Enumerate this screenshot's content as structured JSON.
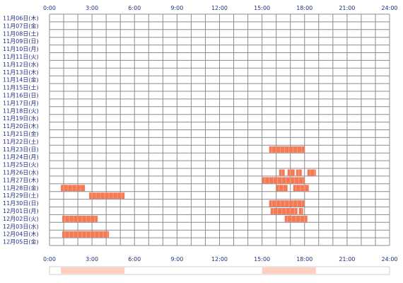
{
  "chart_data": {
    "type": "heatmap",
    "x_range": [
      0,
      24
    ],
    "x_ticks": [
      "0:00",
      "3:00",
      "6:00",
      "9:00",
      "12:00",
      "15:00",
      "18:00",
      "21:00",
      "24:00"
    ],
    "rows": [
      "11月06日(木)",
      "11月07日(金)",
      "11月08日(土)",
      "11月09日(日)",
      "11月10日(月)",
      "11月11日(火)",
      "11月12日(水)",
      "11月13日(木)",
      "11月14日(金)",
      "11月15日(土)",
      "11月16日(日)",
      "11月17日(月)",
      "11月18日(火)",
      "11月19日(水)",
      "11月20日(木)",
      "11月21日(金)",
      "11月22日(土)",
      "11月23日(日)",
      "11月24日(月)",
      "11月25日(火)",
      "11月26日(水)",
      "11月27日(木)",
      "11月28日(金)",
      "11月29日(土)",
      "11月30日(日)",
      "12月01日(月)",
      "12月02日(火)",
      "12月03日(水)",
      "12月04日(木)",
      "12月05日(金)"
    ],
    "activity": [
      {
        "row": 17,
        "start": 15.5,
        "end": 18.0
      },
      {
        "row": 20,
        "start": 16.2,
        "end": 16.6
      },
      {
        "row": 20,
        "start": 16.8,
        "end": 17.3
      },
      {
        "row": 20,
        "start": 17.4,
        "end": 17.8
      },
      {
        "row": 20,
        "start": 18.2,
        "end": 18.8
      },
      {
        "row": 21,
        "start": 15.0,
        "end": 18.0
      },
      {
        "row": 22,
        "start": 0.8,
        "end": 2.5
      },
      {
        "row": 22,
        "start": 16.0,
        "end": 16.8
      },
      {
        "row": 22,
        "start": 17.2,
        "end": 18.3
      },
      {
        "row": 23,
        "start": 2.8,
        "end": 5.3
      },
      {
        "row": 24,
        "start": 15.5,
        "end": 18.0
      },
      {
        "row": 25,
        "start": 15.6,
        "end": 17.5
      },
      {
        "row": 25,
        "start": 17.6,
        "end": 17.9
      },
      {
        "row": 26,
        "start": 0.9,
        "end": 3.4
      },
      {
        "row": 26,
        "start": 16.6,
        "end": 18.2
      },
      {
        "row": 28,
        "start": 0.9,
        "end": 4.2
      }
    ],
    "summary_strip": [
      {
        "start": 0.8,
        "end": 5.3
      },
      {
        "start": 15.0,
        "end": 18.8
      }
    ],
    "colors": {
      "grid": "#8c8c8c",
      "bar": "#f47a55",
      "bar_stripe": "#ff9e80",
      "text": "#1f2f7f",
      "strip_fill": "#ffd0c0",
      "strip_border": "#cfcfcf"
    }
  }
}
